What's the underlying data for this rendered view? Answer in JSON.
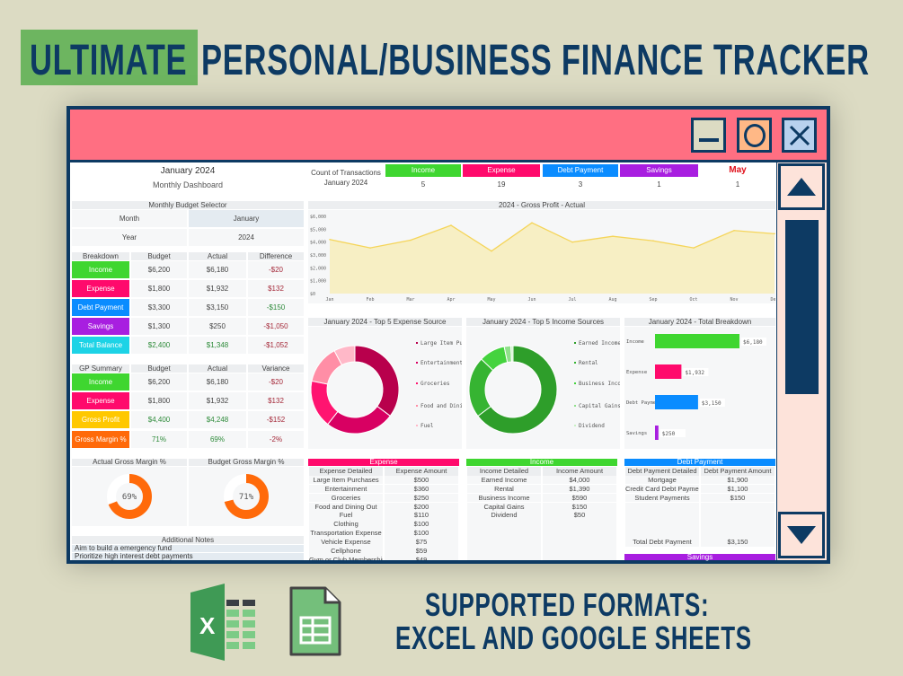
{
  "banner": {
    "highlight": "ULTIMATE",
    "title": "PERSONAL/BUSINESS FINANCE TRACKER",
    "footer_line1": "SUPPORTED FORMATS:",
    "footer_line2": "EXCEL AND GOOGLE SHEETS"
  },
  "colors": {
    "income": "#3fd630",
    "expense": "#ff0a6c",
    "debt": "#0a8cff",
    "savings": "#a81ee0",
    "total": "#1dd3e6",
    "gross_profit": "#ffc800",
    "gross_margin": "#ff6a0a",
    "titlebar": "#ff6f82",
    "navy": "#0d3a63"
  },
  "window": {
    "buttons": [
      "minimize-icon",
      "maximize-icon",
      "close-icon"
    ],
    "scroll": [
      "scroll-up-icon",
      "scroll-down-icon"
    ]
  },
  "header": {
    "month_year": "January 2024",
    "subtitle": "Monthly Dashboard"
  },
  "selector": {
    "title": "Monthly Budget Selector",
    "month_label": "Month",
    "month_value": "January",
    "year_label": "Year",
    "year_value": "2024"
  },
  "breakdown": {
    "headers": [
      "Breakdown",
      "Budget",
      "Actual",
      "Difference"
    ],
    "rows": [
      {
        "label": "Income",
        "budget": "$6,200",
        "actual": "$6,180",
        "diff": "-$20"
      },
      {
        "label": "Expense",
        "budget": "$1,800",
        "actual": "$1,932",
        "diff": "$132"
      },
      {
        "label": "Debt Payment",
        "budget": "$3,300",
        "actual": "$3,150",
        "diff": "-$150"
      },
      {
        "label": "Savings",
        "budget": "$1,300",
        "actual": "$250",
        "diff": "-$1,050"
      },
      {
        "label": "Total Balance",
        "budget": "$2,400",
        "actual": "$1,348",
        "diff": "-$1,052"
      }
    ]
  },
  "gp": {
    "headers": [
      "GP Summary",
      "Budget",
      "Actual",
      "Variance"
    ],
    "rows": [
      {
        "label": "Income",
        "budget": "$6,200",
        "actual": "$6,180",
        "diff": "-$20"
      },
      {
        "label": "Expense",
        "budget": "$1,800",
        "actual": "$1,932",
        "diff": "$132"
      },
      {
        "label": "Gross Profit",
        "budget": "$4,400",
        "actual": "$4,248",
        "diff": "-$152"
      },
      {
        "label": "Gross Margin %",
        "budget": "71%",
        "actual": "69%",
        "diff": "-2%"
      }
    ]
  },
  "gauges": [
    {
      "title": "Actual  Gross Margin %",
      "value": 69,
      "label": "69%"
    },
    {
      "title": "Budget  Gross Margin %",
      "value": 71,
      "label": "71%"
    }
  ],
  "notes": {
    "title": "Additional Notes",
    "items": [
      "Aim to build a emergency fund",
      "Prioritize high interest debt payments"
    ]
  },
  "counts": {
    "label_line1": "Count of Transactions",
    "label_line2": "January 2024",
    "items": [
      {
        "label": "Income",
        "value": "5"
      },
      {
        "label": "Expense",
        "value": "19"
      },
      {
        "label": "Debt Payment",
        "value": "3"
      },
      {
        "label": "Savings",
        "value": "1"
      },
      {
        "label": "May",
        "value": "1"
      }
    ]
  },
  "chart_data": [
    {
      "type": "area",
      "title": "2024 - Gross Profit - Actual",
      "categories": [
        "Jan",
        "Feb",
        "Mar",
        "Apr",
        "May",
        "Jun",
        "Jul",
        "Aug",
        "Sep",
        "Oct",
        "Nov",
        "Dec"
      ],
      "values": [
        4200,
        3550,
        4150,
        5300,
        3300,
        5500,
        4000,
        4450,
        4100,
        3550,
        4900,
        4650
      ],
      "ylim": [
        0,
        6000
      ],
      "yticks": [
        "$0",
        "$1,000",
        "$2,000",
        "$3,000",
        "$4,000",
        "$5,000",
        "$6,000"
      ],
      "color": "#f5d55a",
      "fill": "#f7efc4"
    },
    {
      "type": "pie",
      "title": "January 2024 - Top 5 Expense Source",
      "categories": [
        "Large Item Purchases",
        "Entertainment",
        "Groceries",
        "Food and Dining Out",
        "Fuel"
      ],
      "values": [
        500,
        360,
        250,
        200,
        110
      ],
      "colors": [
        "#b8004c",
        "#d80062",
        "#ff1470",
        "#ff8ea6",
        "#ffb8c8"
      ]
    },
    {
      "type": "pie",
      "title": "January 2024 - Top 5 Income Sources",
      "categories": [
        "Earned Income",
        "Rental",
        "Business Income",
        "Capital Gains",
        "Dividend"
      ],
      "values": [
        4000,
        1390,
        590,
        150,
        50
      ],
      "colors": [
        "#2e9e2a",
        "#36b432",
        "#44d33e",
        "#8fe08a",
        "#c9f1c5"
      ]
    },
    {
      "type": "bar",
      "title": "January 2024 - Total Breakdown",
      "categories": [
        "Income",
        "Expense",
        "Debt Payment",
        "Savings"
      ],
      "values": [
        6180,
        1932,
        3150,
        250
      ],
      "labels": [
        "$6,180",
        "$1,932",
        "$3,150",
        "$250"
      ],
      "colors": [
        "#3fd630",
        "#ff0a6c",
        "#0a8cff",
        "#a81ee0"
      ]
    }
  ],
  "tables": {
    "expense": {
      "title": "Expense",
      "headers": [
        "Expense Detailed",
        "Expense Amount"
      ],
      "rows": [
        [
          "Large Item Purchases",
          "$500"
        ],
        [
          "Entertainment",
          "$360"
        ],
        [
          "Groceries",
          "$250"
        ],
        [
          "Food and Dining Out",
          "$200"
        ],
        [
          "Fuel",
          "$110"
        ],
        [
          "Clothing",
          "$100"
        ],
        [
          "Transportation Expense",
          "$100"
        ],
        [
          "Vehicle Expense",
          "$75"
        ],
        [
          "Cellphone",
          "$59"
        ],
        [
          "Gym or Club Membership",
          "$49"
        ]
      ]
    },
    "income": {
      "title": "Income",
      "headers": [
        "Income Detailed",
        "Income Amount"
      ],
      "rows": [
        [
          "Earned Income",
          "$4,000"
        ],
        [
          "Rental",
          "$1,390"
        ],
        [
          "Business Income",
          "$590"
        ],
        [
          "Capital Gains",
          "$150"
        ],
        [
          "Dividend",
          "$50"
        ],
        [
          "",
          ""
        ],
        [
          "",
          ""
        ],
        [
          "",
          ""
        ],
        [
          "",
          ""
        ],
        [
          "",
          ""
        ]
      ]
    },
    "debt": {
      "title": "Debt Payment",
      "headers": [
        "Debt Payment Detailed",
        "Debt Payment Amount"
      ],
      "rows": [
        [
          "Mortgage",
          "$1,900"
        ],
        [
          "Credit Card Debt Payment",
          "$1,100"
        ],
        [
          "Student Payments",
          "$150"
        ],
        [
          "",
          ""
        ],
        [
          "",
          ""
        ],
        [
          "",
          ""
        ],
        [
          "",
          ""
        ],
        [
          "Total Debt Payment",
          "$3,150"
        ]
      ]
    },
    "savings": {
      "title": "Savings"
    }
  }
}
